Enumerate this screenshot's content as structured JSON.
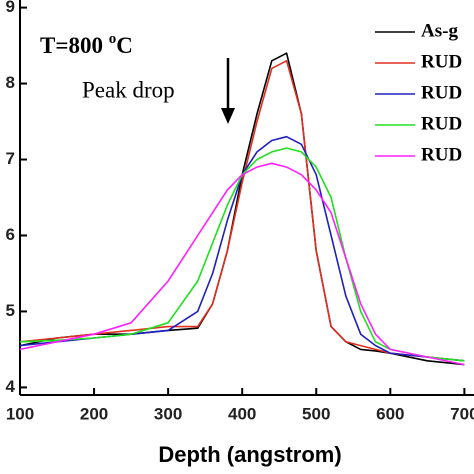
{
  "chart_data": {
    "type": "line",
    "x_label": "Depth (angstrom)",
    "annotation": {
      "text": "T=800 ",
      "sup": "o",
      "unit": "C"
    },
    "arrow_label": "Peak drop",
    "x": [
      100,
      150,
      200,
      250,
      300,
      340,
      360,
      380,
      400,
      420,
      440,
      460,
      480,
      500,
      520,
      540,
      560,
      580,
      600,
      650,
      700
    ],
    "series": [
      {
        "name": "As-g",
        "color": "#000000",
        "values": [
          4.55,
          4.65,
          4.7,
          4.7,
          4.75,
          4.78,
          5.1,
          5.8,
          6.8,
          7.6,
          8.3,
          8.4,
          7.6,
          5.8,
          4.8,
          4.6,
          4.5,
          4.48,
          4.45,
          4.35,
          4.3
        ]
      },
      {
        "name": "RUD",
        "color": "#e03020",
        "values": [
          4.6,
          4.65,
          4.7,
          4.75,
          4.8,
          4.8,
          5.1,
          5.8,
          6.7,
          7.5,
          8.2,
          8.3,
          7.6,
          5.8,
          4.8,
          4.6,
          4.55,
          4.5,
          4.45,
          4.4,
          4.35
        ]
      },
      {
        "name": "RUD",
        "color": "#2020c0",
        "values": [
          4.55,
          4.6,
          4.65,
          4.7,
          4.75,
          5.0,
          5.5,
          6.2,
          6.8,
          7.1,
          7.25,
          7.3,
          7.2,
          6.8,
          6.0,
          5.2,
          4.7,
          4.55,
          4.45,
          4.4,
          4.35
        ]
      },
      {
        "name": "RUD",
        "color": "#20e020",
        "values": [
          4.6,
          4.62,
          4.65,
          4.7,
          4.85,
          5.4,
          5.9,
          6.4,
          6.8,
          7.0,
          7.1,
          7.15,
          7.1,
          6.9,
          6.5,
          5.7,
          5.0,
          4.6,
          4.5,
          4.4,
          4.35
        ]
      },
      {
        "name": "RUD",
        "color": "#ff20ff",
        "values": [
          4.5,
          4.6,
          4.7,
          4.85,
          5.4,
          6.0,
          6.3,
          6.6,
          6.8,
          6.9,
          6.95,
          6.9,
          6.8,
          6.6,
          6.3,
          5.7,
          5.1,
          4.7,
          4.5,
          4.4,
          4.3
        ]
      }
    ],
    "xlim": [
      100,
      713
    ],
    "ylim": [
      3.9,
      9.1
    ],
    "xticks": [
      100,
      200,
      300,
      400,
      500,
      600,
      700
    ],
    "yticks": [
      4,
      5,
      6,
      7,
      8,
      9
    ]
  }
}
